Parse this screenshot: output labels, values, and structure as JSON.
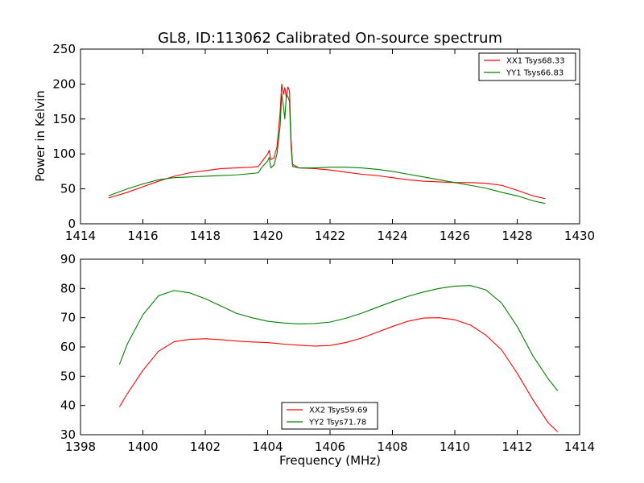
{
  "chart_data": [
    {
      "type": "line",
      "title": "GL8, ID:113062 Calibrated On-source spectrum",
      "xlabel": "",
      "ylabel": "Power in Kelvin",
      "xlim": [
        1414,
        1430
      ],
      "ylim": [
        0,
        250
      ],
      "xticks": [
        "1414",
        "1416",
        "1418",
        "1420",
        "1422",
        "1424",
        "1426",
        "1428",
        "1430"
      ],
      "yticks": [
        "0",
        "50",
        "100",
        "150",
        "200",
        "250"
      ],
      "legend_position": "top-right",
      "grid": false,
      "series": [
        {
          "name": "XX1 Tsys68.33",
          "color": "#ff0000",
          "x": [
            1414.9,
            1415.5,
            1416.0,
            1416.5,
            1417.0,
            1417.5,
            1418.0,
            1418.5,
            1419.0,
            1419.5,
            1419.7,
            1419.8,
            1420.0,
            1420.05,
            1420.1,
            1420.2,
            1420.3,
            1420.4,
            1420.45,
            1420.5,
            1420.55,
            1420.6,
            1420.65,
            1420.7,
            1420.75,
            1420.8,
            1421.0,
            1421.5,
            1422.0,
            1422.5,
            1423.0,
            1423.5,
            1424.0,
            1424.5,
            1425.0,
            1425.5,
            1426.0,
            1426.5,
            1427.0,
            1427.5,
            1428.0,
            1428.5,
            1428.9
          ],
          "y": [
            37,
            45,
            53,
            61,
            68,
            73,
            76,
            79,
            80,
            81,
            82,
            88,
            100,
            105,
            92,
            94,
            110,
            160,
            200,
            185,
            195,
            180,
            196,
            190,
            120,
            85,
            80,
            79,
            77,
            74,
            71,
            69,
            66,
            63,
            61,
            60,
            59,
            59,
            58,
            55,
            48,
            40,
            36
          ]
        },
        {
          "name": "YY1 Tsys66.83",
          "color": "#008000",
          "x": [
            1414.9,
            1415.5,
            1416.0,
            1416.5,
            1417.0,
            1417.5,
            1418.0,
            1418.5,
            1419.0,
            1419.5,
            1419.7,
            1419.8,
            1420.0,
            1420.05,
            1420.1,
            1420.2,
            1420.3,
            1420.4,
            1420.45,
            1420.5,
            1420.55,
            1420.6,
            1420.65,
            1420.7,
            1420.75,
            1420.8,
            1421.0,
            1421.5,
            1422.0,
            1422.5,
            1423.0,
            1423.5,
            1424.0,
            1424.5,
            1425.0,
            1425.5,
            1426.0,
            1426.5,
            1427.0,
            1427.5,
            1428.0,
            1428.5,
            1428.9
          ],
          "y": [
            40,
            50,
            57,
            63,
            66,
            67,
            68,
            69,
            70,
            72,
            73,
            80,
            90,
            95,
            80,
            84,
            100,
            140,
            185,
            170,
            150,
            185,
            182,
            175,
            110,
            82,
            80,
            80,
            81,
            81,
            80,
            78,
            75,
            71,
            67,
            63,
            59,
            55,
            51,
            45,
            40,
            33,
            29
          ]
        }
      ]
    },
    {
      "type": "line",
      "title": "",
      "xlabel": "Frequency (MHz)",
      "ylabel": "",
      "xlim": [
        1398,
        1414
      ],
      "ylim": [
        30,
        90
      ],
      "xticks": [
        "1398",
        "1400",
        "1402",
        "1404",
        "1406",
        "1408",
        "1410",
        "1412",
        "1414"
      ],
      "yticks": [
        "30",
        "40",
        "50",
        "60",
        "70",
        "80",
        "90"
      ],
      "legend_position": "bottom-center",
      "grid": false,
      "series": [
        {
          "name": "XX2 Tsys59.69",
          "color": "#ff0000",
          "x": [
            1399.25,
            1399.5,
            1400.0,
            1400.5,
            1401.0,
            1401.5,
            1402.0,
            1402.5,
            1403.0,
            1403.5,
            1404.0,
            1404.5,
            1405.0,
            1405.5,
            1406.0,
            1406.5,
            1407.0,
            1407.5,
            1408.0,
            1408.5,
            1409.0,
            1409.5,
            1410.0,
            1410.5,
            1411.0,
            1411.5,
            1412.0,
            1412.5,
            1413.0,
            1413.3
          ],
          "y": [
            39.5,
            44,
            52,
            58.5,
            61.8,
            62.6,
            62.8,
            62.5,
            62.0,
            61.7,
            61.5,
            61.0,
            60.6,
            60.3,
            60.5,
            61.5,
            63.0,
            65.0,
            67.0,
            68.8,
            69.9,
            70.0,
            69.3,
            67.5,
            64,
            59,
            51,
            42,
            34,
            31
          ]
        },
        {
          "name": "YY2 Tsys71.78",
          "color": "#008000",
          "x": [
            1399.25,
            1399.5,
            1400.0,
            1400.5,
            1401.0,
            1401.5,
            1402.0,
            1402.5,
            1403.0,
            1403.5,
            1404.0,
            1404.5,
            1405.0,
            1405.5,
            1406.0,
            1406.5,
            1407.0,
            1407.5,
            1408.0,
            1408.5,
            1409.0,
            1409.5,
            1410.0,
            1410.5,
            1411.0,
            1411.5,
            1412.0,
            1412.5,
            1413.0,
            1413.3
          ],
          "y": [
            54,
            61,
            71,
            77.5,
            79.3,
            78.5,
            76.5,
            74,
            71.5,
            70,
            68.8,
            68.2,
            67.9,
            68.0,
            68.5,
            69.8,
            71.5,
            73.5,
            75.5,
            77.3,
            78.8,
            80.0,
            80.8,
            81.0,
            79.5,
            75,
            67,
            57,
            49,
            45
          ]
        }
      ]
    }
  ]
}
